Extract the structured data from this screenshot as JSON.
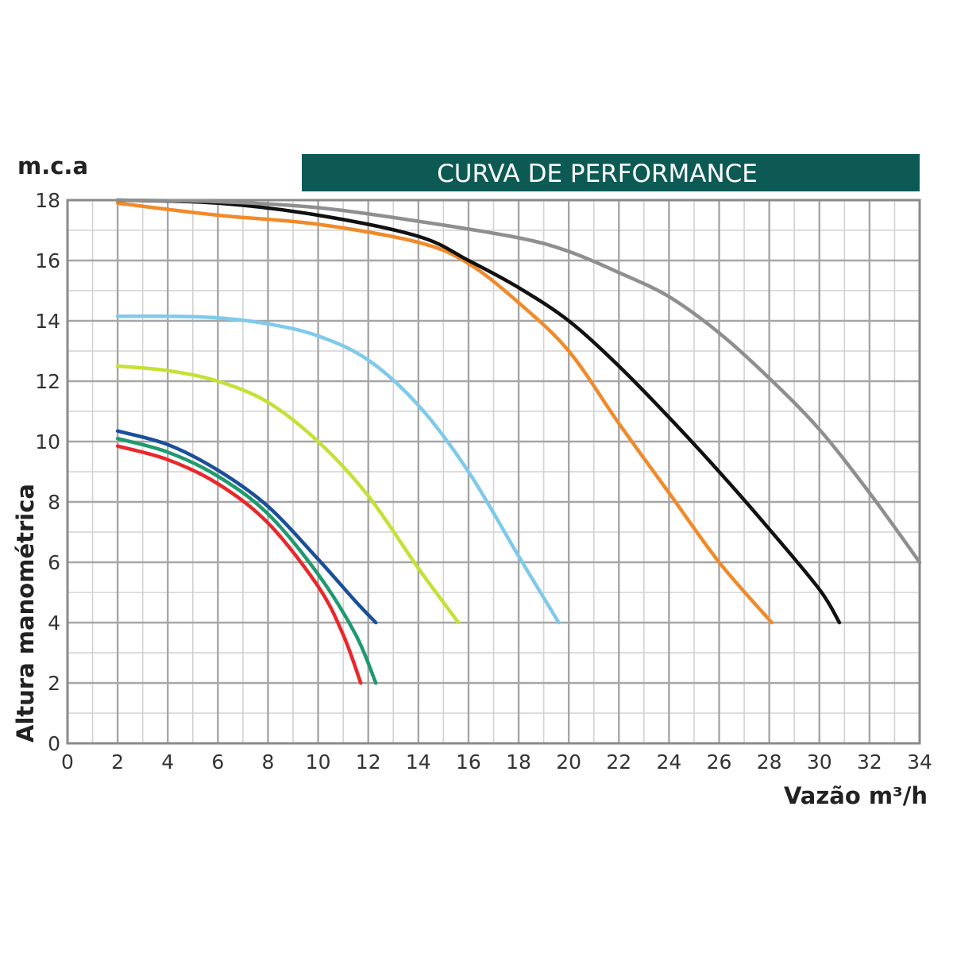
{
  "chart_data": {
    "type": "line",
    "title": "CURVA DE PERFORMANCE",
    "xlabel": "Vazão m³/h",
    "ylabel": "Altura manométrica",
    "yunit": "m.c.a",
    "xlim": [
      0,
      34
    ],
    "ylim": [
      0,
      18
    ],
    "xticks": [
      0,
      2,
      4,
      6,
      8,
      10,
      12,
      14,
      16,
      18,
      20,
      22,
      24,
      26,
      28,
      30,
      32,
      34
    ],
    "yticks": [
      0,
      2,
      4,
      6,
      8,
      10,
      12,
      14,
      16,
      18
    ],
    "grid": true,
    "title_color": "#0d5a55",
    "series": [
      {
        "color": "#e8282b",
        "points": [
          [
            2,
            9.85
          ],
          [
            4,
            9.4
          ],
          [
            6,
            8.6
          ],
          [
            8,
            7.3
          ],
          [
            10,
            5.2
          ],
          [
            11,
            3.6
          ],
          [
            11.7,
            2.0
          ]
        ]
      },
      {
        "color": "#1f9a6e",
        "points": [
          [
            2,
            10.1
          ],
          [
            4,
            9.65
          ],
          [
            6,
            8.85
          ],
          [
            8,
            7.6
          ],
          [
            10,
            5.6
          ],
          [
            11.5,
            3.6
          ],
          [
            12.3,
            2.0
          ]
        ]
      },
      {
        "color": "#1a4f9a",
        "points": [
          [
            2,
            10.35
          ],
          [
            4,
            9.9
          ],
          [
            6,
            9.05
          ],
          [
            8,
            7.85
          ],
          [
            10,
            6.1
          ],
          [
            11.5,
            4.7
          ],
          [
            12.3,
            4.0
          ]
        ]
      },
      {
        "color": "#c6e035",
        "points": [
          [
            2,
            12.5
          ],
          [
            4,
            12.35
          ],
          [
            6,
            12.0
          ],
          [
            8,
            11.3
          ],
          [
            10,
            10.0
          ],
          [
            12,
            8.2
          ],
          [
            14,
            5.8
          ],
          [
            15.6,
            4.0
          ]
        ]
      },
      {
        "color": "#7fcaea",
        "points": [
          [
            2,
            14.15
          ],
          [
            4,
            14.15
          ],
          [
            6,
            14.1
          ],
          [
            8,
            13.9
          ],
          [
            10,
            13.5
          ],
          [
            12,
            12.7
          ],
          [
            14,
            11.2
          ],
          [
            16,
            9.0
          ],
          [
            18,
            6.2
          ],
          [
            19.6,
            4.0
          ]
        ]
      },
      {
        "color": "#f08a2a",
        "points": [
          [
            2,
            17.9
          ],
          [
            6,
            17.5
          ],
          [
            10,
            17.2
          ],
          [
            14,
            16.6
          ],
          [
            16,
            15.9
          ],
          [
            18,
            14.6
          ],
          [
            20,
            13.0
          ],
          [
            22,
            10.6
          ],
          [
            24,
            8.3
          ],
          [
            26,
            6.0
          ],
          [
            28.1,
            4.0
          ]
        ]
      },
      {
        "color": "#111111",
        "points": [
          [
            2,
            18.0
          ],
          [
            6,
            17.9
          ],
          [
            10,
            17.5
          ],
          [
            14,
            16.8
          ],
          [
            16,
            16.0
          ],
          [
            18,
            15.1
          ],
          [
            20,
            14.0
          ],
          [
            22,
            12.5
          ],
          [
            24,
            10.8
          ],
          [
            26,
            9.0
          ],
          [
            28,
            7.1
          ],
          [
            30,
            5.1
          ],
          [
            30.8,
            4.0
          ]
        ]
      },
      {
        "color": "#8f8f8f",
        "points": [
          [
            2,
            18.0
          ],
          [
            6,
            17.95
          ],
          [
            10,
            17.75
          ],
          [
            14,
            17.3
          ],
          [
            18,
            16.75
          ],
          [
            20,
            16.3
          ],
          [
            22,
            15.6
          ],
          [
            24,
            14.8
          ],
          [
            26,
            13.6
          ],
          [
            28,
            12.1
          ],
          [
            30,
            10.4
          ],
          [
            32,
            8.3
          ],
          [
            34,
            6.0
          ]
        ]
      }
    ]
  }
}
